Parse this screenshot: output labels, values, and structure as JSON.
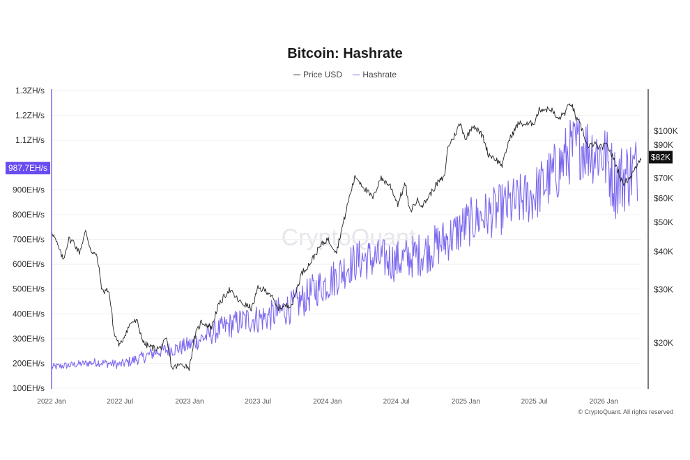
{
  "chart_data": {
    "type": "line",
    "title": "Bitcoin: Hashrate",
    "watermark": "CryptoQuant",
    "copyright": "© CryptoQuant. All rights reserved",
    "x_ticks": [
      "2022 Jan",
      "2022 Jul",
      "2023 Jan",
      "2023 Jul",
      "2024 Jan",
      "2024 Jul",
      "2025 Jan",
      "2025 Jul",
      "2026 Jan"
    ],
    "x_tick_dates": [
      "2022-01-01",
      "2022-07-01",
      "2023-01-01",
      "2023-07-01",
      "2024-01-01",
      "2024-07-01",
      "2025-01-01",
      "2025-07-01",
      "2026-01-01"
    ],
    "xlim": [
      "2022-01-01",
      "2026-04-10"
    ],
    "left_axis": {
      "series": "Hashrate",
      "scale": "linear",
      "ylim": [
        100,
        1300
      ],
      "tick_values": [
        100,
        200,
        300,
        400,
        500,
        600,
        700,
        800,
        900,
        1100,
        1200,
        1300
      ],
      "tick_labels": [
        "100EH/s",
        "200EH/s",
        "300EH/s",
        "400EH/s",
        "500EH/s",
        "600EH/s",
        "700EH/s",
        "800EH/s",
        "900EH/s",
        "1.1ZH/s",
        "1.2ZH/s",
        "1.3ZH/s"
      ],
      "current_value": 987.7,
      "current_label": "987.7EH/s"
    },
    "right_axis": {
      "series": "Price USD",
      "scale": "log",
      "tick_values": [
        20000,
        30000,
        40000,
        50000,
        60000,
        70000,
        90000,
        100000
      ],
      "tick_labels": [
        "$20K",
        "$30K",
        "$40K",
        "$50K",
        "$60K",
        "$70K",
        "$90K",
        "$100K"
      ],
      "current_value": 82000,
      "current_label": "$82K"
    },
    "legend": {
      "position": "top-center"
    },
    "grid": true,
    "series": [
      {
        "name": "Price USD",
        "color": "#222222",
        "axis": "right",
        "x": [
          "2022-01-01",
          "2022-01-15",
          "2022-02-01",
          "2022-02-15",
          "2022-03-01",
          "2022-03-15",
          "2022-04-01",
          "2022-04-15",
          "2022-05-01",
          "2022-05-15",
          "2022-06-01",
          "2022-06-15",
          "2022-07-01",
          "2022-07-15",
          "2022-08-01",
          "2022-08-15",
          "2022-09-01",
          "2022-09-15",
          "2022-10-01",
          "2022-10-15",
          "2022-11-01",
          "2022-11-15",
          "2022-12-01",
          "2022-12-15",
          "2023-01-01",
          "2023-01-15",
          "2023-02-01",
          "2023-03-01",
          "2023-03-15",
          "2023-04-15",
          "2023-05-15",
          "2023-06-15",
          "2023-07-01",
          "2023-07-15",
          "2023-08-01",
          "2023-08-20",
          "2023-09-15",
          "2023-10-01",
          "2023-10-25",
          "2023-11-15",
          "2023-12-15",
          "2024-01-01",
          "2024-01-25",
          "2024-02-15",
          "2024-03-01",
          "2024-03-15",
          "2024-04-15",
          "2024-05-01",
          "2024-05-20",
          "2024-06-15",
          "2024-07-05",
          "2024-07-25",
          "2024-08-05",
          "2024-08-25",
          "2024-09-10",
          "2024-10-01",
          "2024-10-20",
          "2024-11-05",
          "2024-11-15",
          "2024-12-01",
          "2024-12-17",
          "2025-01-01",
          "2025-01-20",
          "2025-02-15",
          "2025-03-01",
          "2025-03-15",
          "2025-04-08",
          "2025-04-25",
          "2025-05-20",
          "2025-06-15",
          "2025-07-01",
          "2025-07-15",
          "2025-08-15",
          "2025-09-01",
          "2025-09-20",
          "2025-10-06",
          "2025-10-20",
          "2025-11-05",
          "2025-11-20",
          "2025-12-05",
          "2025-12-20",
          "2026-01-10",
          "2026-02-01",
          "2026-02-20",
          "2026-03-10",
          "2026-03-25",
          "2026-04-10"
        ],
        "y": [
          47000,
          42500,
          37500,
          44000,
          43000,
          39500,
          46500,
          40500,
          38500,
          29500,
          30000,
          21500,
          19500,
          21500,
          23500,
          23500,
          20000,
          19500,
          19200,
          19200,
          20500,
          16500,
          16800,
          17000,
          16600,
          21000,
          23500,
          22500,
          26000,
          30000,
          27200,
          26000,
          30200,
          30000,
          29300,
          26100,
          26500,
          27000,
          34000,
          36500,
          42000,
          44000,
          40000,
          51500,
          62000,
          71000,
          63000,
          60000,
          70000,
          66000,
          57500,
          67000,
          54000,
          59000,
          57000,
          62500,
          68000,
          70000,
          89000,
          96000,
          106000,
          94000,
          105000,
          96000,
          84000,
          82000,
          77000,
          93000,
          106000,
          105000,
          107000,
          118000,
          118000,
          109000,
          115000,
          124000,
          110000,
          101000,
          88000,
          91000,
          88000,
          90000,
          78000,
          67000,
          70000,
          75000,
          82000
        ]
      },
      {
        "name": "Hashrate",
        "color": "#7b68ee",
        "axis": "left",
        "x": [
          "2022-01-01",
          "2022-02-01",
          "2022-03-01",
          "2022-04-01",
          "2022-05-01",
          "2022-06-01",
          "2022-07-01",
          "2022-08-01",
          "2022-09-01",
          "2022-10-01",
          "2022-11-01",
          "2022-12-01",
          "2023-01-01",
          "2023-02-01",
          "2023-03-01",
          "2023-04-01",
          "2023-05-01",
          "2023-06-01",
          "2023-07-01",
          "2023-08-01",
          "2023-09-01",
          "2023-10-01",
          "2023-11-01",
          "2023-12-01",
          "2024-01-01",
          "2024-02-01",
          "2024-03-01",
          "2024-04-01",
          "2024-05-01",
          "2024-06-01",
          "2024-07-01",
          "2024-08-01",
          "2024-09-01",
          "2024-10-01",
          "2024-11-01",
          "2024-12-01",
          "2025-01-01",
          "2025-02-01",
          "2025-03-01",
          "2025-04-01",
          "2025-05-01",
          "2025-06-01",
          "2025-07-01",
          "2025-08-01",
          "2025-09-01",
          "2025-10-01",
          "2025-11-01",
          "2025-12-01",
          "2026-01-01",
          "2026-02-01",
          "2026-03-01",
          "2026-04-01"
        ],
        "y": [
          185,
          190,
          195,
          200,
          205,
          200,
          195,
          210,
          225,
          245,
          255,
          260,
          275,
          300,
          320,
          345,
          360,
          375,
          380,
          390,
          410,
          430,
          460,
          500,
          525,
          560,
          600,
          620,
          620,
          620,
          610,
          625,
          640,
          660,
          690,
          720,
          760,
          785,
          800,
          820,
          840,
          860,
          880,
          930,
          980,
          1050,
          1080,
          1060,
          1040,
          930,
          960,
          987.7
        ],
        "noise_amplitude": [
          15,
          15,
          15,
          15,
          18,
          18,
          18,
          22,
          25,
          28,
          30,
          32,
          35,
          40,
          45,
          50,
          55,
          58,
          60,
          62,
          65,
          68,
          72,
          75,
          78,
          80,
          82,
          85,
          85,
          85,
          85,
          88,
          90,
          90,
          92,
          95,
          98,
          100,
          100,
          105,
          110,
          112,
          115,
          120,
          130,
          135,
          140,
          140,
          140,
          150,
          150,
          140
        ]
      }
    ]
  }
}
